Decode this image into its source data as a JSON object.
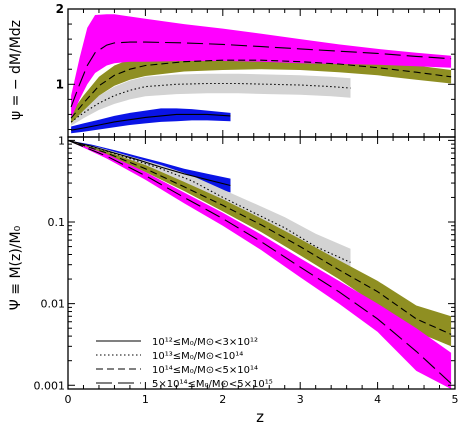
{
  "chart_data": [
    {
      "type": "area",
      "panel": "top",
      "ylabel": "ψ = − dM/Mdz",
      "ylim": [
        0.3,
        2.0
      ],
      "yticks": [
        1,
        2
      ],
      "yscale": "linear",
      "xlim": [
        0,
        5
      ],
      "xticks": [
        0,
        1,
        2,
        3,
        4,
        5
      ],
      "series": [
        {
          "color": "#0a14e6",
          "dash": "solid",
          "x": [
            0.04,
            0.2,
            0.4,
            0.6,
            0.8,
            1.0,
            1.2,
            1.4,
            1.6,
            1.8,
            2.1
          ],
          "y": [
            0.39,
            0.42,
            0.46,
            0.5,
            0.53,
            0.56,
            0.58,
            0.6,
            0.6,
            0.6,
            0.58
          ],
          "lower": [
            0.35,
            0.37,
            0.4,
            0.43,
            0.46,
            0.48,
            0.5,
            0.51,
            0.52,
            0.52,
            0.51
          ],
          "upper": [
            0.44,
            0.48,
            0.53,
            0.58,
            0.62,
            0.65,
            0.68,
            0.68,
            0.67,
            0.65,
            0.62
          ]
        },
        {
          "color": "#d3d3d3",
          "dash": "dotted",
          "x": [
            0.04,
            0.2,
            0.4,
            0.6,
            0.8,
            1.0,
            1.4,
            1.8,
            2.2,
            2.6,
            3.0,
            3.4,
            3.65
          ],
          "y": [
            0.5,
            0.62,
            0.75,
            0.85,
            0.92,
            0.97,
            1.0,
            1.01,
            1.01,
            1.0,
            0.99,
            0.97,
            0.95
          ],
          "lower": [
            0.45,
            0.55,
            0.66,
            0.74,
            0.8,
            0.84,
            0.87,
            0.88,
            0.88,
            0.87,
            0.86,
            0.84,
            0.82
          ],
          "upper": [
            0.56,
            0.7,
            0.85,
            0.97,
            1.05,
            1.1,
            1.13,
            1.14,
            1.14,
            1.13,
            1.12,
            1.1,
            1.08
          ]
        },
        {
          "color": "#8f8f22",
          "dash": "dashed",
          "x": [
            0.04,
            0.2,
            0.4,
            0.6,
            0.8,
            1.0,
            1.5,
            2.0,
            2.5,
            3.0,
            3.5,
            4.0,
            4.5,
            4.95
          ],
          "y": [
            0.55,
            0.75,
            0.98,
            1.12,
            1.2,
            1.25,
            1.3,
            1.32,
            1.32,
            1.3,
            1.27,
            1.22,
            1.16,
            1.1
          ],
          "lower": [
            0.48,
            0.65,
            0.85,
            0.98,
            1.06,
            1.11,
            1.17,
            1.19,
            1.2,
            1.19,
            1.16,
            1.12,
            1.06,
            1.01
          ],
          "upper": [
            0.62,
            0.85,
            1.1,
            1.25,
            1.33,
            1.38,
            1.43,
            1.44,
            1.44,
            1.42,
            1.38,
            1.32,
            1.25,
            1.19
          ]
        },
        {
          "color": "#ff00ff",
          "dash": "longdash",
          "x": [
            0.04,
            0.15,
            0.25,
            0.35,
            0.5,
            0.6,
            0.8,
            1.0,
            1.5,
            2.0,
            2.5,
            3.0,
            3.5,
            4.0,
            4.5,
            4.95
          ],
          "y": [
            0.7,
            1.0,
            1.25,
            1.42,
            1.52,
            1.55,
            1.56,
            1.56,
            1.55,
            1.53,
            1.5,
            1.47,
            1.44,
            1.41,
            1.37,
            1.34
          ],
          "lower": [
            0.55,
            0.8,
            1.0,
            1.15,
            1.25,
            1.28,
            1.3,
            1.3,
            1.31,
            1.31,
            1.3,
            1.28,
            1.27,
            1.26,
            1.24,
            1.22
          ],
          "upper": [
            0.85,
            1.35,
            1.75,
            1.92,
            1.93,
            1.93,
            1.9,
            1.87,
            1.8,
            1.74,
            1.67,
            1.6,
            1.53,
            1.47,
            1.42,
            1.38
          ]
        }
      ]
    },
    {
      "type": "area",
      "panel": "bottom",
      "ylabel": "Ψ ≡ M(z)/M₀",
      "xlabel": "z",
      "ylim": [
        0.0009,
        1.1
      ],
      "yscale": "log",
      "yticks": [
        1,
        0.1,
        0.01,
        0.001
      ],
      "ytick_labels": [
        "1",
        "0.1",
        "0.01",
        "0.001"
      ],
      "xlim": [
        0,
        5
      ],
      "xticks": [
        0,
        1,
        2,
        3,
        4,
        5
      ],
      "xtick_labels": [
        "0",
        "1",
        "2",
        "3",
        "4",
        "5"
      ],
      "legend": {
        "position": "bottom-left",
        "entries": [
          {
            "dash": "solid",
            "label": "10¹²≤M₀/M⊙<3×10¹²"
          },
          {
            "dash": "dotted",
            "label": "10¹³≤M₀/M⊙<10¹⁴"
          },
          {
            "dash": "dashed",
            "label": "10¹⁴≤M₀/M⊙<5×10¹⁴"
          },
          {
            "dash": "longdash",
            "label": "5×10¹⁴≤M₀/M⊙<5×10¹⁵"
          }
        ]
      },
      "series": [
        {
          "color": "#0a14e6",
          "dash": "solid",
          "x": [
            0.0,
            0.3,
            0.6,
            0.9,
            1.2,
            1.5,
            1.8,
            2.1
          ],
          "y": [
            1.0,
            0.85,
            0.7,
            0.58,
            0.47,
            0.39,
            0.33,
            0.28
          ],
          "lower": [
            1.0,
            0.82,
            0.66,
            0.53,
            0.42,
            0.34,
            0.28,
            0.23
          ],
          "upper": [
            1.0,
            0.89,
            0.76,
            0.64,
            0.54,
            0.45,
            0.39,
            0.34
          ]
        },
        {
          "color": "#d3d3d3",
          "dash": "dotted",
          "x": [
            0.0,
            0.4,
            0.8,
            1.2,
            1.6,
            2.0,
            2.4,
            2.8,
            3.2,
            3.65
          ],
          "y": [
            1.0,
            0.79,
            0.6,
            0.45,
            0.32,
            0.2,
            0.13,
            0.085,
            0.05,
            0.032
          ],
          "lower": [
            1.0,
            0.77,
            0.56,
            0.41,
            0.28,
            0.17,
            0.1,
            0.065,
            0.037,
            0.023
          ],
          "upper": [
            1.0,
            0.82,
            0.64,
            0.5,
            0.37,
            0.25,
            0.17,
            0.115,
            0.072,
            0.047
          ]
        },
        {
          "color": "#8f8f22",
          "dash": "dashed",
          "x": [
            0.0,
            0.5,
            1.0,
            1.5,
            2.0,
            2.5,
            3.0,
            3.5,
            4.0,
            4.5,
            4.95
          ],
          "y": [
            1.0,
            0.7,
            0.45,
            0.27,
            0.16,
            0.092,
            0.05,
            0.026,
            0.014,
            0.0065,
            0.0042
          ],
          "lower": [
            1.0,
            0.67,
            0.41,
            0.24,
            0.135,
            0.075,
            0.039,
            0.02,
            0.0095,
            0.0045,
            0.003
          ],
          "upper": [
            1.0,
            0.73,
            0.5,
            0.31,
            0.19,
            0.11,
            0.062,
            0.034,
            0.019,
            0.0095,
            0.007
          ]
        },
        {
          "color": "#ff00ff",
          "dash": "longdash",
          "x": [
            0.0,
            0.5,
            1.0,
            1.5,
            2.0,
            2.5,
            3.0,
            3.5,
            4.0,
            4.5,
            4.95
          ],
          "y": [
            1.0,
            0.64,
            0.37,
            0.2,
            0.11,
            0.057,
            0.028,
            0.014,
            0.0065,
            0.0026,
            0.00105
          ],
          "lower": [
            1.0,
            0.6,
            0.33,
            0.17,
            0.09,
            0.045,
            0.021,
            0.01,
            0.0045,
            0.0015,
            0.0009
          ],
          "upper": [
            1.0,
            0.68,
            0.41,
            0.23,
            0.13,
            0.07,
            0.036,
            0.019,
            0.01,
            0.005,
            0.0025
          ]
        }
      ]
    }
  ]
}
